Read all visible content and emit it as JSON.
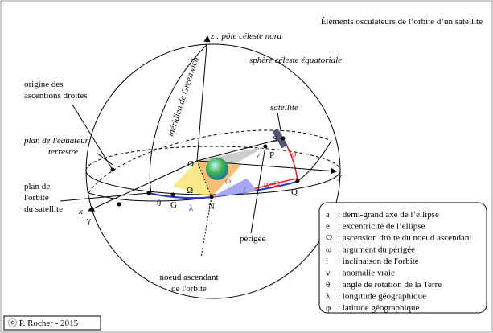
{
  "title": "Éléments osculateurs de l’orbite d’un satellite",
  "labels": {
    "z_axis": "z : pôle céleste nord",
    "sphere": "sphère céleste équatoriale",
    "origin": [
      "origine des",
      "ascentions droites"
    ],
    "equator": [
      "plan de l'équateur",
      "terrestre"
    ],
    "orbit": [
      "plan de",
      "l'orbite",
      "du satellite"
    ],
    "meridian": "méridien de Greenwich",
    "satellite": "satellite",
    "perigee": "périgée",
    "node": [
      "noeud ascendant",
      "de l'orbite"
    ]
  },
  "points": {
    "O": "O",
    "S": "S",
    "P": "P",
    "Q": "Q",
    "N": "N",
    "G": "G",
    "x": "x",
    "y": "y",
    "gamma": "γ"
  },
  "angles": {
    "theta": "θ",
    "Omega": "Ω",
    "omega": "ω",
    "i": "i",
    "lambda": "λ",
    "alpha_minus_Omega": "α−Ω",
    "phi": "φ",
    "nu": "v"
  },
  "legend": [
    {
      "symbol": "a",
      "text": ": demi-grand axe de l’ellipse"
    },
    {
      "symbol": "e",
      "text": ": excentricité de l’ellipse"
    },
    {
      "symbol": "Ω",
      "text": ": ascension droite du noeud ascendant"
    },
    {
      "symbol": "ω",
      "text": ": argument du périgée"
    },
    {
      "symbol": "i",
      "text": ": inclinaison de l'orbite"
    },
    {
      "symbol": "v",
      "text": ": anomalie vraie"
    },
    {
      "symbol": "θ",
      "text": ": angle de rotation de la Terre"
    },
    {
      "symbol": "λ",
      "text": ": longitude géographique"
    },
    {
      "symbol": "φ",
      "text": ": latitude géographique"
    }
  ],
  "credit": "ⓒ P. Rocher - 2015"
}
